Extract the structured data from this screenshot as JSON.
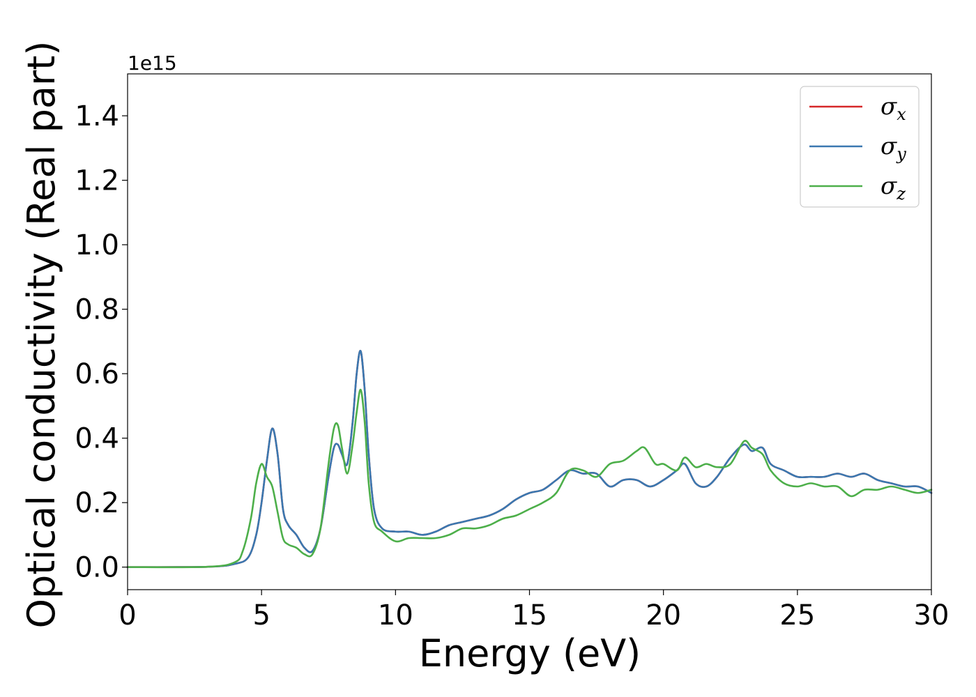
{
  "chart_data": {
    "type": "line",
    "title": "",
    "xlabel": "Energy (eV)",
    "ylabel": "Optical conductivity (Real part)",
    "offset_text": "1e15",
    "xlim": [
      0,
      30
    ],
    "ylim": [
      -0.07,
      1.53
    ],
    "xticks": [
      0,
      5,
      10,
      15,
      20,
      25,
      30
    ],
    "xtick_labels": [
      "0",
      "5",
      "10",
      "15",
      "20",
      "25",
      "30"
    ],
    "yticks": [
      0.0,
      0.2,
      0.4,
      0.6,
      0.8,
      1.0,
      1.2,
      1.4
    ],
    "ytick_labels": [
      "0.0",
      "0.2",
      "0.4",
      "0.6",
      "0.8",
      "1.0",
      "1.2",
      "1.4"
    ],
    "grid": false,
    "legend_position": "top-right",
    "series": [
      {
        "name": "σx",
        "legend_symbol": "σ",
        "legend_sub": "x",
        "color": "#d62728",
        "x": [
          0,
          3.0,
          4.0,
          4.5,
          4.8,
          5.0,
          5.2,
          5.4,
          5.6,
          5.8,
          6.0,
          6.3,
          6.6,
          6.9,
          7.2,
          7.5,
          7.7,
          7.85,
          8.0,
          8.2,
          8.4,
          8.55,
          8.7,
          8.85,
          9.0,
          9.2,
          9.5,
          10.0,
          10.5,
          11.0,
          11.5,
          12.0,
          12.5,
          13.0,
          13.5,
          14.0,
          14.5,
          15.0,
          15.5,
          16.0,
          16.5,
          17.0,
          17.5,
          18.0,
          18.5,
          19.0,
          19.5,
          20.0,
          20.5,
          20.8,
          21.2,
          21.6,
          22.0,
          22.5,
          23.0,
          23.3,
          23.7,
          24.0,
          24.5,
          25.0,
          25.5,
          26.0,
          26.5,
          27.0,
          27.5,
          28.0,
          28.5,
          29.0,
          29.5,
          30.0
        ],
        "y": [
          0,
          0.001,
          0.01,
          0.03,
          0.1,
          0.2,
          0.33,
          0.43,
          0.35,
          0.18,
          0.13,
          0.1,
          0.06,
          0.05,
          0.12,
          0.28,
          0.37,
          0.38,
          0.35,
          0.32,
          0.45,
          0.6,
          0.67,
          0.55,
          0.35,
          0.18,
          0.12,
          0.11,
          0.11,
          0.1,
          0.11,
          0.13,
          0.14,
          0.15,
          0.16,
          0.18,
          0.21,
          0.23,
          0.24,
          0.27,
          0.3,
          0.29,
          0.29,
          0.25,
          0.27,
          0.27,
          0.25,
          0.27,
          0.3,
          0.32,
          0.26,
          0.25,
          0.28,
          0.34,
          0.38,
          0.36,
          0.37,
          0.32,
          0.3,
          0.28,
          0.28,
          0.28,
          0.29,
          0.28,
          0.29,
          0.27,
          0.26,
          0.25,
          0.25,
          0.23
        ]
      },
      {
        "name": "σy",
        "legend_symbol": "σ",
        "legend_sub": "y",
        "color": "#3a78b0",
        "x": [
          0,
          3.0,
          4.0,
          4.5,
          4.8,
          5.0,
          5.2,
          5.4,
          5.6,
          5.8,
          6.0,
          6.3,
          6.6,
          6.9,
          7.2,
          7.5,
          7.7,
          7.85,
          8.0,
          8.2,
          8.4,
          8.55,
          8.7,
          8.85,
          9.0,
          9.2,
          9.5,
          10.0,
          10.5,
          11.0,
          11.5,
          12.0,
          12.5,
          13.0,
          13.5,
          14.0,
          14.5,
          15.0,
          15.5,
          16.0,
          16.5,
          17.0,
          17.5,
          18.0,
          18.5,
          19.0,
          19.5,
          20.0,
          20.5,
          20.8,
          21.2,
          21.6,
          22.0,
          22.5,
          23.0,
          23.3,
          23.7,
          24.0,
          24.5,
          25.0,
          25.5,
          26.0,
          26.5,
          27.0,
          27.5,
          28.0,
          28.5,
          29.0,
          29.5,
          30.0
        ],
        "y": [
          0,
          0.001,
          0.01,
          0.03,
          0.1,
          0.2,
          0.33,
          0.43,
          0.35,
          0.18,
          0.13,
          0.1,
          0.06,
          0.05,
          0.12,
          0.28,
          0.37,
          0.38,
          0.35,
          0.32,
          0.45,
          0.6,
          0.67,
          0.55,
          0.35,
          0.18,
          0.12,
          0.11,
          0.11,
          0.1,
          0.11,
          0.13,
          0.14,
          0.15,
          0.16,
          0.18,
          0.21,
          0.23,
          0.24,
          0.27,
          0.3,
          0.29,
          0.29,
          0.25,
          0.27,
          0.27,
          0.25,
          0.27,
          0.3,
          0.32,
          0.26,
          0.25,
          0.28,
          0.34,
          0.38,
          0.36,
          0.37,
          0.32,
          0.3,
          0.28,
          0.28,
          0.28,
          0.29,
          0.28,
          0.29,
          0.27,
          0.26,
          0.25,
          0.25,
          0.23
        ]
      },
      {
        "name": "σz",
        "legend_symbol": "σ",
        "legend_sub": "z",
        "color": "#4daf4a",
        "x": [
          0,
          3.0,
          4.0,
          4.3,
          4.6,
          4.8,
          5.0,
          5.2,
          5.4,
          5.6,
          5.8,
          6.0,
          6.3,
          6.6,
          6.9,
          7.2,
          7.5,
          7.7,
          7.85,
          8.0,
          8.2,
          8.4,
          8.55,
          8.7,
          8.85,
          9.0,
          9.2,
          9.5,
          10.0,
          10.5,
          11.0,
          11.5,
          12.0,
          12.5,
          13.0,
          13.5,
          14.0,
          14.5,
          15.0,
          15.5,
          16.0,
          16.5,
          17.0,
          17.5,
          18.0,
          18.5,
          19.0,
          19.3,
          19.7,
          20.0,
          20.5,
          20.8,
          21.2,
          21.6,
          22.0,
          22.5,
          23.0,
          23.3,
          23.7,
          24.0,
          24.5,
          25.0,
          25.5,
          26.0,
          26.5,
          27.0,
          27.5,
          28.0,
          28.5,
          29.0,
          29.5,
          30.0
        ],
        "y": [
          0,
          0.001,
          0.015,
          0.05,
          0.15,
          0.26,
          0.32,
          0.28,
          0.25,
          0.17,
          0.09,
          0.07,
          0.06,
          0.04,
          0.04,
          0.12,
          0.32,
          0.43,
          0.44,
          0.37,
          0.29,
          0.38,
          0.48,
          0.55,
          0.45,
          0.26,
          0.14,
          0.11,
          0.08,
          0.09,
          0.09,
          0.09,
          0.1,
          0.12,
          0.12,
          0.13,
          0.15,
          0.16,
          0.18,
          0.2,
          0.23,
          0.3,
          0.3,
          0.28,
          0.32,
          0.33,
          0.36,
          0.37,
          0.32,
          0.32,
          0.3,
          0.34,
          0.31,
          0.32,
          0.31,
          0.32,
          0.39,
          0.37,
          0.35,
          0.3,
          0.26,
          0.25,
          0.26,
          0.25,
          0.25,
          0.22,
          0.24,
          0.24,
          0.25,
          0.24,
          0.23,
          0.24
        ]
      }
    ]
  }
}
